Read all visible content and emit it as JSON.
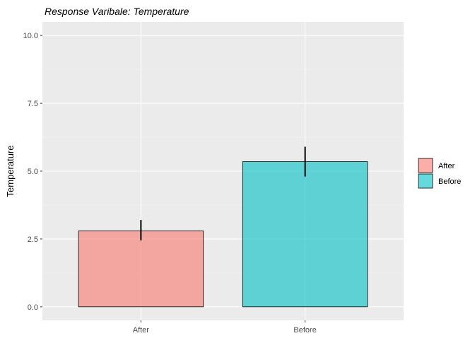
{
  "chart_data": {
    "type": "bar",
    "title": "Response Varibale: Temperature",
    "xlabel": "",
    "ylabel": "Temperature",
    "categories": [
      "After",
      "Before"
    ],
    "values": [
      2.8,
      5.35
    ],
    "error_bars": [
      {
        "low": 2.45,
        "high": 3.2
      },
      {
        "low": 4.8,
        "high": 5.9
      }
    ],
    "ylim": [
      -0.5,
      10.5
    ],
    "y_ticks": [
      0.0,
      2.5,
      5.0,
      7.5,
      10.0
    ],
    "y_tick_labels": [
      "0.0",
      "2.5",
      "5.0",
      "7.5",
      "10.0"
    ],
    "grid": true,
    "legend_position": "right",
    "legend": [
      {
        "label": "After",
        "color": "#F8766D"
      },
      {
        "label": "Before",
        "color": "#00BFC4"
      }
    ],
    "colors": {
      "panel_background": "#EBEBEB",
      "grid_major": "#FFFFFF",
      "grid_minor": "#F5F5F5"
    }
  }
}
